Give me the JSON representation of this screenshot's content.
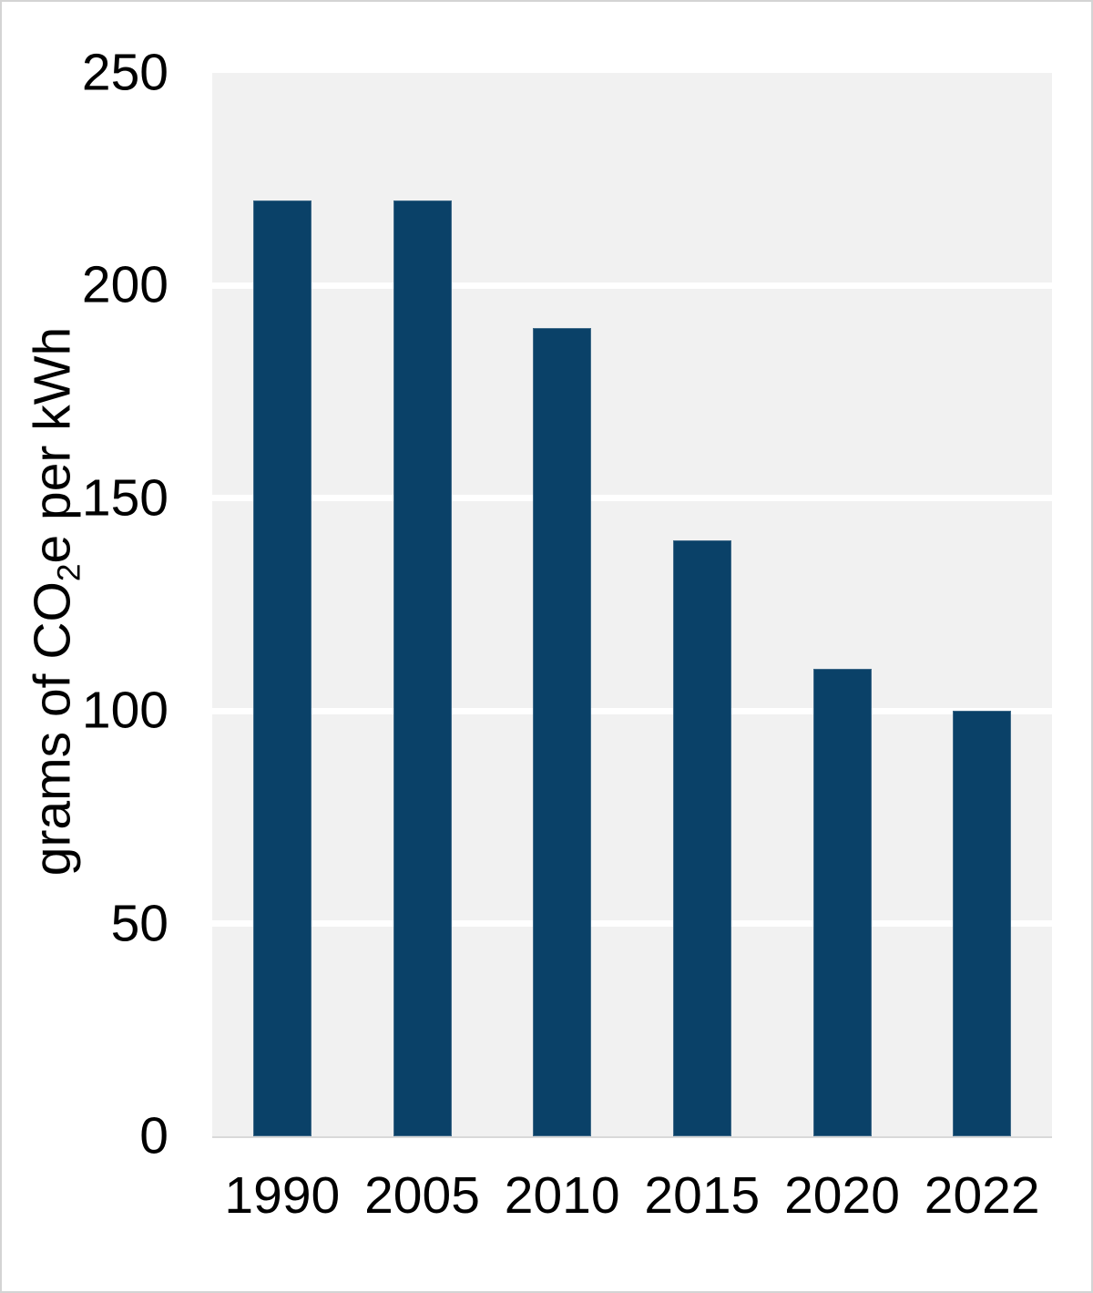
{
  "chart_data": {
    "type": "bar",
    "title": "",
    "categories": [
      "1990",
      "2005",
      "2010",
      "2015",
      "2020",
      "2022"
    ],
    "values": [
      220,
      220,
      190,
      140,
      110,
      100
    ],
    "xlabel": "",
    "ylabel": "grams of CO2e per kWh",
    "ylabel_parts": {
      "pre": "grams of CO",
      "sub": "2",
      "post": "e per kWh"
    },
    "ylim": [
      0,
      250
    ],
    "yticks": [
      0,
      50,
      100,
      150,
      200,
      250
    ],
    "gridlines": {
      "values": [
        50,
        100,
        150,
        200
      ],
      "color": "#ffffff",
      "orientation": "horizontal"
    },
    "legend": "none",
    "colors": {
      "bar": "#0a4168",
      "panel_background": "#f1f1f1",
      "baseline": "#d9d9d9",
      "text": "#000000",
      "frame_border": "#d4d4d4",
      "page_background": "#ffffff"
    }
  }
}
